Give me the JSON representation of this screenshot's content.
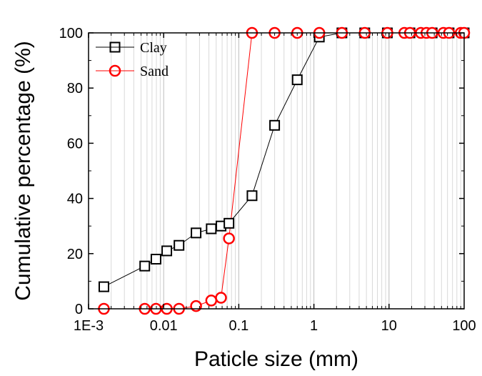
{
  "chart_data": {
    "type": "scatter",
    "title": "",
    "xlabel": "Paticle size (mm)",
    "ylabel": "Cumulative percentage (%)",
    "xscale": "log",
    "xlim": [
      0.001,
      100
    ],
    "ylim": [
      0,
      100
    ],
    "grid": "vertical-minor-and-major",
    "legend_position": "top-left",
    "x_ticks": [
      {
        "value": 0.001,
        "label": "1E-3"
      },
      {
        "value": 0.01,
        "label": "0.01"
      },
      {
        "value": 0.1,
        "label": "0.1"
      },
      {
        "value": 1,
        "label": "1"
      },
      {
        "value": 10,
        "label": "10"
      },
      {
        "value": 100,
        "label": "100"
      }
    ],
    "y_ticks": [
      {
        "value": 0,
        "label": "0"
      },
      {
        "value": 20,
        "label": "20"
      },
      {
        "value": 40,
        "label": "40"
      },
      {
        "value": 60,
        "label": "60"
      },
      {
        "value": 80,
        "label": "80"
      },
      {
        "value": 100,
        "label": "100"
      }
    ],
    "series": [
      {
        "name": "Clay",
        "marker": "square",
        "color": "#000000",
        "x": [
          0.0016,
          0.0056,
          0.0079,
          0.011,
          0.016,
          0.027,
          0.043,
          0.058,
          0.074,
          0.15,
          0.3,
          0.6,
          1.18,
          2.36,
          4.75,
          9.5,
          19,
          37.5,
          63,
          100
        ],
        "y": [
          8,
          15.5,
          18,
          21,
          23,
          27.5,
          29,
          30,
          31,
          41,
          66.5,
          83,
          98.5,
          100,
          100,
          100,
          100,
          100,
          100,
          100
        ]
      },
      {
        "name": "Sand",
        "marker": "circle",
        "color": "#ff0000",
        "x": [
          0.0016,
          0.0056,
          0.0079,
          0.011,
          0.016,
          0.027,
          0.043,
          0.058,
          0.074,
          0.15,
          0.3,
          0.6,
          1.18,
          2.36,
          4.75,
          9.5,
          16,
          19,
          26.5,
          31.5,
          37.5,
          53,
          63,
          90,
          100
        ],
        "y": [
          0,
          0,
          0,
          0,
          0,
          1,
          3,
          4,
          25.5,
          100,
          100,
          100,
          100,
          100,
          100,
          100,
          100,
          100,
          100,
          100,
          100,
          100,
          100,
          100,
          100
        ]
      }
    ]
  }
}
